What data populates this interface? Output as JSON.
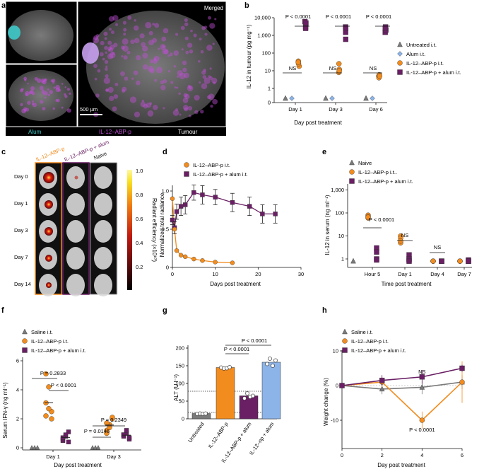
{
  "panel_labels": {
    "a": "a",
    "b": "b",
    "c": "c",
    "d": "d",
    "e": "e",
    "f": "f",
    "g": "g",
    "h": "h"
  },
  "colors": {
    "untreated": "#7a7a7a",
    "alum": "#8cb4e8",
    "abp": "#f28c1e",
    "abp_alum": "#6a1f64",
    "cyan": "#3ec9c9",
    "magenta": "#c04fd6"
  },
  "panel_a": {
    "merged": "Merged",
    "scale": "500 µm",
    "legend": [
      "Alum",
      "IL-12–ABP-p",
      "Tumour"
    ]
  },
  "panel_c": {
    "columns": [
      "IL-12–ABP-p",
      "IL-12–ABP-p + alum",
      "Naive"
    ],
    "rows": [
      "Day 0",
      "Day 1",
      "Day 3",
      "Day 7",
      "Day 14"
    ],
    "colorbar_ticks": [
      "1.0",
      "0.8",
      "0.6",
      "0.4",
      "0.2"
    ],
    "colorbar_label": "Radiant efficiency (×10¹⁰)"
  },
  "chart_data": [
    {
      "id": "b",
      "type": "scatter",
      "log_y": true,
      "ylabel": "IL-12 in tumour (pg mg⁻¹)",
      "xlabel": "Day post treatment",
      "categories": [
        "Day 1",
        "Day 3",
        "Day 6"
      ],
      "yticks": [
        "10,000",
        "1,000",
        "100",
        "10",
        "1",
        "0"
      ],
      "legend": [
        "Untreated i.t.",
        "Alum i.t.",
        "IL-12–ABP-p i.t.",
        "IL-12–ABP-p + alum i.t."
      ],
      "series": [
        {
          "name": "Untreated i.t.",
          "values": [
            0,
            0,
            0
          ]
        },
        {
          "name": "Alum i.t.",
          "values": [
            0,
            0,
            0
          ]
        },
        {
          "name": "IL-12–ABP-p i.t.",
          "values": [
            [
              35,
              18,
              25,
              30
            ],
            [
              12,
              8,
              25,
              10
            ],
            [
              5,
              4,
              6,
              5
            ]
          ]
        },
        {
          "name": "IL-12–ABP-p + alum i.t.",
          "values": [
            [
              6000,
              3000,
              2500,
              5000
            ],
            [
              3000,
              1500,
              600,
              2500
            ],
            [
              3000,
              1500,
              2000,
              2500
            ]
          ]
        }
      ],
      "annotations": [
        "P < 0.0001",
        "P < 0.0001",
        "P < 0.0001",
        "NS",
        "NS",
        "NS"
      ]
    },
    {
      "id": "d",
      "type": "line",
      "ylabel": "Normalized total radiance",
      "xlabel": "Days post treatment",
      "xlim": [
        0,
        30
      ],
      "ylim": [
        0,
        1.0
      ],
      "xticks": [
        "0",
        "10",
        "20",
        "30"
      ],
      "yticks": [
        "0",
        "0.5",
        "1.0"
      ],
      "series": [
        {
          "name": "IL-12–ABP-p i.t.",
          "x": [
            0,
            0.5,
            1,
            2,
            3,
            5,
            7,
            10,
            14
          ],
          "y": [
            0.9,
            0.5,
            0.22,
            0.16,
            0.14,
            0.11,
            0.09,
            0.07,
            0.06
          ]
        },
        {
          "name": "IL-12–ABP-p + alum i.t.",
          "x": [
            0,
            0.5,
            1,
            2,
            3,
            5,
            7,
            10,
            14,
            18,
            21,
            24
          ],
          "y": [
            0.62,
            0.52,
            0.73,
            0.8,
            0.82,
            0.98,
            0.95,
            0.92,
            0.85,
            0.8,
            0.7,
            0.7
          ],
          "err": [
            0.06,
            0.08,
            0.1,
            0.12,
            0.12,
            0.1,
            0.12,
            0.1,
            0.12,
            0.12,
            0.12,
            0.12
          ]
        }
      ]
    },
    {
      "id": "e",
      "type": "scatter",
      "log_y": true,
      "ylabel": "IL-12 in serum (ng ml⁻¹)",
      "xlabel": "Time post treatment",
      "categories": [
        "Hour 5",
        "Day 1",
        "Day 4",
        "Day 7"
      ],
      "yticks": [
        "1,000",
        "100",
        "10",
        "1"
      ],
      "legend": [
        "Naive",
        "IL-12–ABP-p i.t..",
        "IL-12–ABP-p + alum i.t."
      ],
      "series": [
        {
          "name": "Naive",
          "values": [
            0.8
          ]
        },
        {
          "name": "IL-12–ABP-p i.t..",
          "values": [
            [
              80,
              60,
              70,
              65
            ],
            [
              10,
              5,
              8,
              6
            ],
            [
              0.8,
              0.8,
              0.8,
              0.8
            ],
            [
              0.8,
              0.8,
              0.8,
              0.8
            ]
          ]
        },
        {
          "name": "IL-12–ABP-p + alum i.t.",
          "values": [
            [
              3,
              1,
              2,
              0.9
            ],
            [
              1.5,
              0.9,
              1,
              0.8
            ],
            [
              0.8,
              0.8,
              0.8,
              0.8
            ],
            [
              0.8,
              0.9,
              0.8,
              0.8
            ]
          ]
        }
      ],
      "annotations": [
        "P < 0.0001",
        "NS",
        "NS"
      ]
    },
    {
      "id": "f",
      "type": "scatter",
      "ylabel": "Serum IFN-γ (ng ml⁻¹)",
      "xlabel": "Day post treatment",
      "categories": [
        "Day 1",
        "Day 3"
      ],
      "ylim": [
        0,
        6
      ],
      "yticks": [
        "0",
        "2",
        "4",
        "6"
      ],
      "legend": [
        "Saline i.t.",
        "IL-12–ABP-p i.t.",
        "IL-12–ABP-p + alum i.t."
      ],
      "series": [
        {
          "name": "Saline i.t.",
          "values": [
            [
              0,
              0,
              0
            ],
            [
              0,
              0,
              0
            ]
          ]
        },
        {
          "name": "IL-12–ABP-p i.t.",
          "values": [
            [
              2.2,
              4.2,
              2.5,
              3.1,
              2.7,
              2.0,
              5.1
            ],
            [
              1.2,
              1.6,
              2.0,
              1.0,
              1.4,
              2.1,
              1.7
            ]
          ]
        },
        {
          "name": "IL-12–ABP-p + alum i.t.",
          "values": [
            [
              0.5,
              0.8,
              1.1,
              0.6,
              0.9,
              0.4,
              0.7
            ],
            [
              0.8,
              1.0,
              0.6,
              0.9,
              1.2,
              0.7,
              0.9
            ]
          ]
        }
      ],
      "annotations": [
        "P = 0.2833",
        "P < 0.0001",
        "P = 0.2349",
        "P = 0.0146"
      ]
    },
    {
      "id": "g",
      "type": "bar",
      "ylabel": "ALT (U l⁻¹)",
      "categories": [
        "Untreated",
        "IL-12–ABP-p",
        "IL-12–ABP-p + alum",
        "IL-12–np + alum"
      ],
      "values": [
        15,
        145,
        65,
        160
      ],
      "ylim": [
        0,
        200
      ],
      "yticks": [
        "0",
        "50",
        "100",
        "150",
        "200"
      ],
      "annotations": [
        "P < 0.0001",
        "P < 0.0001"
      ]
    },
    {
      "id": "h",
      "type": "line",
      "ylabel": "Weight change (%)",
      "xlabel": "Day post treatment",
      "xlim": [
        0,
        6
      ],
      "ylim": [
        -15,
        10
      ],
      "xticks": [
        "0",
        "2",
        "4",
        "6"
      ],
      "yticks": [
        "10",
        "0",
        "-10"
      ],
      "legend": [
        "Saline i.t.",
        "IL-12–ABP-p i.t.",
        "IL-12–ABP-p + alum i.t."
      ],
      "series": [
        {
          "name": "Saline i.t.",
          "x": [
            0,
            2,
            4,
            6
          ],
          "y": [
            0,
            -1,
            -0.5,
            1
          ]
        },
        {
          "name": "IL-12–ABP-p i.t.",
          "x": [
            0,
            2,
            4,
            6
          ],
          "y": [
            0,
            1,
            -10,
            1
          ]
        },
        {
          "name": "IL-12–ABP-p + alum i.t.",
          "x": [
            0,
            2,
            4,
            6
          ],
          "y": [
            0,
            1.5,
            2.5,
            5
          ]
        }
      ],
      "annotations": [
        "NS",
        "P < 0.0001"
      ]
    }
  ]
}
